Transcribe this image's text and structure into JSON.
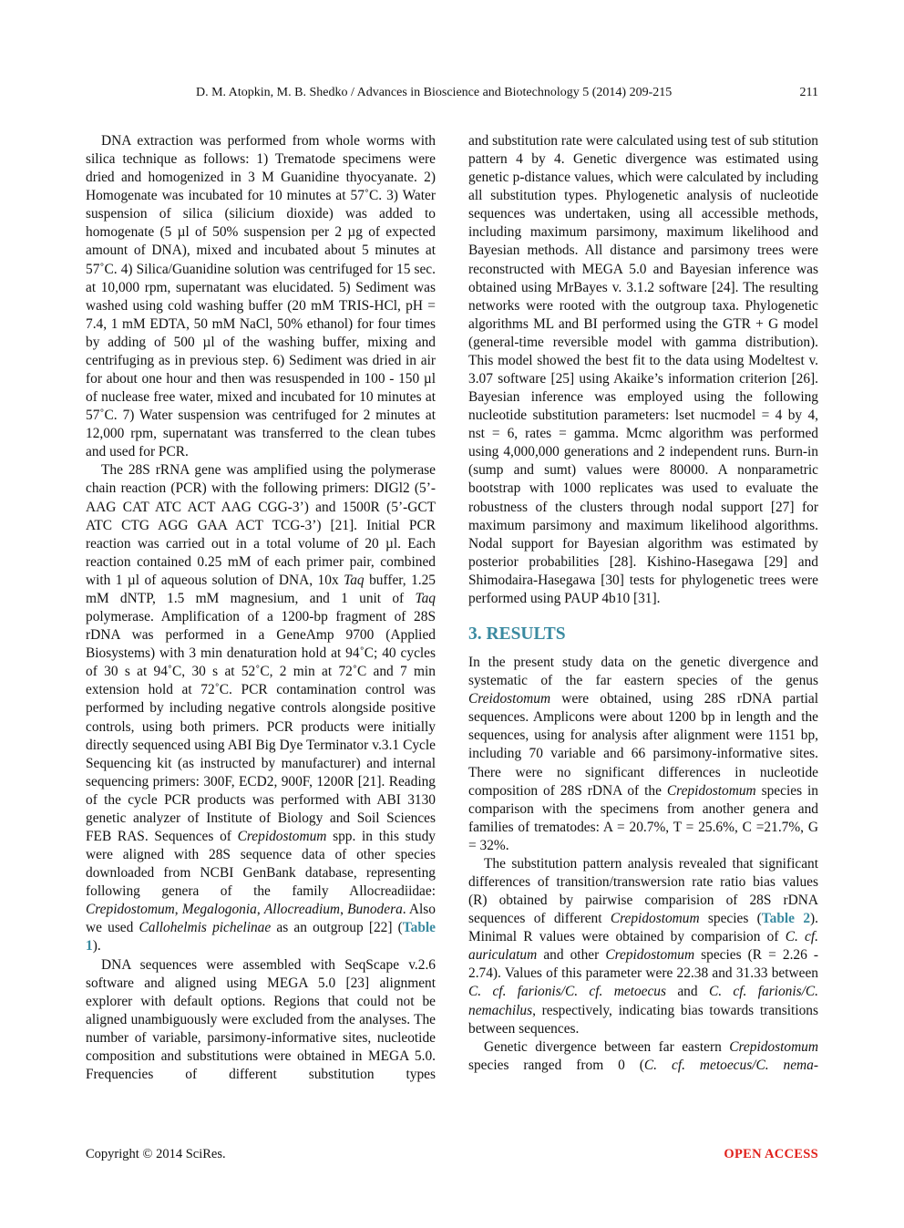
{
  "header": {
    "running_title": "D. M. Atopkin, M. B. Shedko / Advances in Bioscience and Biotechnology 5 (2014) 209-215",
    "page_number": "211"
  },
  "left_column": [
    {
      "noindent": false,
      "segments": [
        "DNA extraction was performed from whole worms with silica technique as follows: 1) Trematode specimens were dried and homogenized in 3 M Guanidine thyocyanate. 2) Homogenate was incubated for 10 minutes at 57˚C. 3) Water suspension of silica (silicium dioxide) was added to homogenate (5 µl of 50% suspension per 2 µg of expected amount of DNA), mixed and incubated about 5 minutes at 57˚C. 4) Silica/Guanidine solution was centrifuged for 15 sec. at 10,000 rpm, supernatant was elucidated. 5) Sediment was washed using cold washing buffer (20 mM TRIS-HCl, pH = 7.4, 1 mM EDTA, 50 mM NaCl, 50% ethanol) for four times by adding of 500 µl of the washing buffer, mixing and centrifuging as in previous step. 6) Sediment was dried in air for about one hour and then was resuspended in 100 - 150 µl of nuclease free water, mixed and incubated for 10 minutes at 57˚C. 7) Water suspension was centrifuged for 2 minutes at 12,000 rpm, supernatant was transferred to the clean tubes and used for PCR."
      ]
    },
    {
      "noindent": false,
      "segments": [
        "The 28S rRNA gene was amplified using the polymerase chain reaction (PCR) with the following primers: DIGl2 (5’-AAG CAT ATC ACT AAG CGG-3’) and 1500R (5’-GCT ATC CTG AGG GAA ACT TCG-3’) [21]. Initial PCR reaction was carried out in a total volume of 20 µl. Each reaction contained 0.25 mM of each primer pair, combined with 1 µl of aqueous solution of DNA, 10x ",
        {
          "i": "Taq"
        },
        " buffer, 1.25 mM dNTP, 1.5 mM magnesium, and 1 unit of ",
        {
          "i": "Taq"
        },
        " polymerase. Amplification of a 1200-bp fragment of 28S rDNA was performed in a GeneAmp 9700 (Applied Biosystems) with 3 min denaturation hold at 94˚C; 40 cycles of 30 s at 94˚C, 30 s at 52˚C, 2 min at 72˚C and 7 min extension hold at 72˚C. PCR contamination control was performed by including negative controls alongside positive controls, using both primers. PCR products were initially directly sequenced using ABI Big Dye Terminator v.3.1 Cycle Sequencing kit (as instructed by manufacturer) and internal sequencing primers: 300F, ECD2, 900F, 1200R [21]. Reading of the cycle PCR products was performed with ABI 3130 genetic analyzer of Institute of Biology and Soil Sciences FEB RAS. Sequences of ",
        {
          "i": "Crepidostomum"
        },
        " spp. in this study were aligned with 28S sequence data of other species downloaded from NCBI GenBank database, representing following genera of the family Allocreadiidae: ",
        {
          "i": "Crepidostomum"
        },
        ", ",
        {
          "i": "Megalogonia"
        },
        ", ",
        {
          "i": "Allocreadium"
        },
        ", ",
        {
          "i": "Bunodera"
        },
        ". Also we used ",
        {
          "i": "Callohelmis pichelinae"
        },
        " as an outgroup [22] (",
        {
          "link": "Table 1"
        },
        ")."
      ]
    },
    {
      "noindent": false,
      "segments": [
        "DNA sequences were assembled with SeqScape v.2.6 software and aligned using MEGA 5.0 [23] alignment explorer with default options. Regions that could not be aligned unambiguously were excluded from the analyses. The number of variable, parsimony-informative sites, nucleotide composition and substitutions were obtained in MEGA 5.0. Frequencies of different substitution types"
      ],
      "last": true
    }
  ],
  "right_column_top": [
    {
      "noindent": true,
      "segments": [
        "and substitution rate were calculated using test of sub stitution pattern 4 by 4. Genetic divergence was estimated using genetic p-distance values, which were calculated by including all substitution types. Phylogenetic analysis of nucleotide sequences was undertaken, using all accessible methods, including maximum parsimony, maximum likelihood and Bayesian methods. All distance and parsimony trees were reconstructed with MEGA 5.0 and Bayesian inference was obtained using MrBayes v. 3.1.2 software [24]. The resulting networks were rooted with the outgroup taxa. Phylogenetic algorithms ML and BI performed using the GTR + G model (general-time reversible model with gamma distribution). This model showed the best fit to the data using Modeltest v. 3.07 software [25] using Akaike’s information criterion [26]. Bayesian inference was employed using the following nucleotide substitution parameters: lset nucmodel = 4 by 4, nst = 6, rates = gamma. Mcmc algorithm was performed using 4,000,000 generations and 2 independent runs. Burn-in (sump and sumt) values were 80000. A nonparametric bootstrap with 1000 replicates was used to evaluate the robustness of the clusters through nodal support [27] for maximum parsimony and maximum likelihood algorithms. Nodal support for Bayesian algorithm was estimated by posterior probabilities [28]. Kishino-Hasegawa [29] and Shimodaira-Hasegawa [30] tests for phylogenetic trees were performed using PAUP 4b10 [31]."
      ]
    }
  ],
  "section_heading": "3. RESULTS",
  "right_column_bottom": [
    {
      "noindent": true,
      "segments": [
        "In the present study data on the genetic divergence and systematic of the far eastern species of the genus ",
        {
          "i": "Creidostomum"
        },
        " were obtained, using 28S rDNA partial sequences. Amplicons were about 1200 bp in length and the sequences, using for analysis after alignment were 1151 bp, including 70 variable and 66 parsimony-informative sites. There were no significant differences in nucleotide composition of 28S rDNA of the ",
        {
          "i": "Crepidostomum"
        },
        " species in comparison with the specimens from another genera and families of trematodes: A = 20.7%, T = 25.6%, C =21.7%, G = 32%."
      ]
    },
    {
      "noindent": false,
      "segments": [
        "The substitution pattern analysis revealed that significant differences of transition/transwersion rate ratio bias values (R) obtained by pairwise comparision of 28S rDNA sequences of different ",
        {
          "i": "Crepidostomum"
        },
        " species (",
        {
          "link": "Table 2"
        },
        "). Minimal R values were obtained by comparision of ",
        {
          "i": "C. cf. auriculatum"
        },
        " and other ",
        {
          "i": "Crepidostomum"
        },
        " species (R = 2.26 - 2.74). Values of this parameter were 22.38 and 31.33 between ",
        {
          "i": "C. cf. farionis/C. cf. metoecus"
        },
        " and ",
        {
          "i": "C. cf. farionis/C. nemachilus"
        },
        ", respectively, indicating bias towards transitions between sequences."
      ]
    },
    {
      "noindent": false,
      "segments": [
        "Genetic divergence between far eastern ",
        {
          "i": "Crepidostomum"
        },
        " species ranged from 0 (",
        {
          "i": "C. cf. metoecus/C. nema-"
        }
      ],
      "last": true
    }
  ],
  "footer": {
    "copyright": "Copyright © 2014 SciRes.",
    "open_access": "OPEN ACCESS",
    "open_access_color": "#e0201b"
  },
  "colors": {
    "heading": "#3a8aa0",
    "link": "#3a8aa0"
  }
}
